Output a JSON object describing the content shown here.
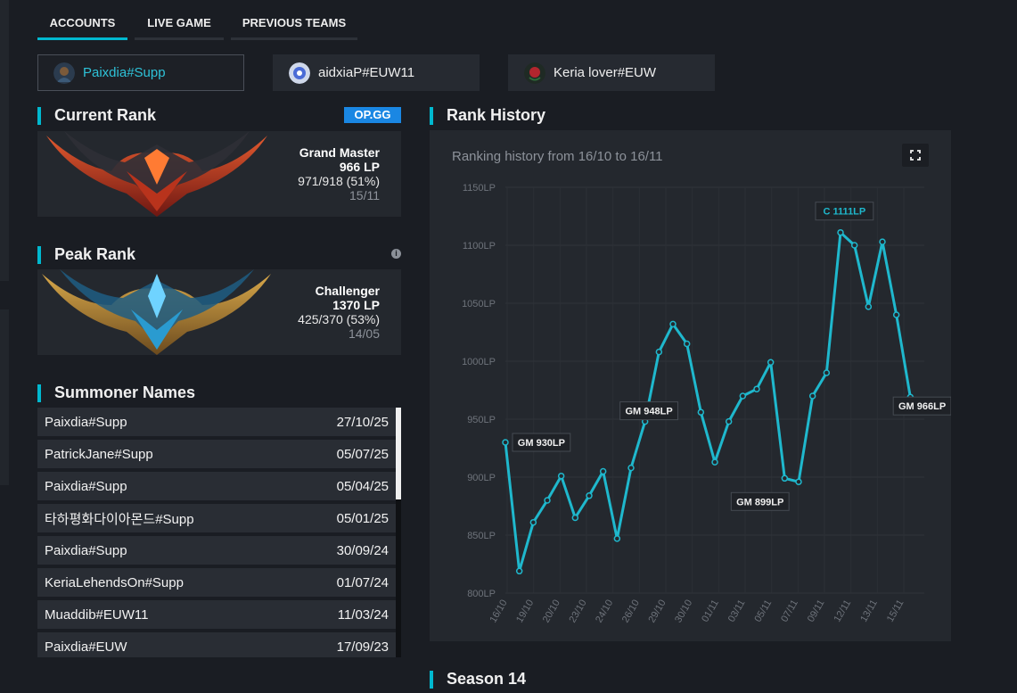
{
  "tabs": [
    {
      "label": "ACCOUNTS",
      "active": true
    },
    {
      "label": "LIVE GAME",
      "active": false
    },
    {
      "label": "PREVIOUS TEAMS",
      "active": false
    }
  ],
  "accounts": [
    {
      "name": "Paixdia#Supp",
      "active": true
    },
    {
      "name": "aidxiaP#EUW11",
      "active": false
    },
    {
      "name": "Keria lover#EUW",
      "active": false
    }
  ],
  "current_rank": {
    "title": "Current Rank",
    "badge": "OP.GG",
    "tier": "Grand Master",
    "lp": "966 LP",
    "record": "971/918 (51%)",
    "date": "15/11"
  },
  "peak_rank": {
    "title": "Peak Rank",
    "info_icon": "i",
    "tier": "Challenger",
    "lp": "1370 LP",
    "record": "425/370 (53%)",
    "date": "14/05"
  },
  "summoner_names": {
    "title": "Summoner Names",
    "rows": [
      {
        "name": "Paixdia#Supp",
        "date": "27/10/25"
      },
      {
        "name": "PatrickJane#Supp",
        "date": "05/07/25"
      },
      {
        "name": "Paixdia#Supp",
        "date": "05/04/25"
      },
      {
        "name": "타하평화다이아몬드#Supp",
        "date": "05/01/25"
      },
      {
        "name": "Paixdia#Supp",
        "date": "30/09/24"
      },
      {
        "name": "KeriaLehendsOn#Supp",
        "date": "01/07/24"
      },
      {
        "name": "Muaddib#EUW11",
        "date": "11/03/24"
      },
      {
        "name": "Paixdia#EUW",
        "date": "17/09/23"
      }
    ]
  },
  "rank_history": {
    "title": "Rank History",
    "subtitle": "Ranking history from 16/10 to 16/11"
  },
  "season": {
    "title": "Season 14"
  },
  "colors": {
    "accent": "#00b8cf",
    "line": "#1fb8cd",
    "opgg": "#1a87e3"
  },
  "icons": {
    "expand": "expand-icon",
    "info": "info-icon"
  },
  "chart_data": {
    "type": "line",
    "title": "",
    "xlabel": "",
    "ylabel": "",
    "ylim": [
      800,
      1150
    ],
    "y_ticks": [
      "800LP",
      "850LP",
      "900LP",
      "950LP",
      "1000LP",
      "1050LP",
      "1100LP",
      "1150LP"
    ],
    "x_ticks": [
      "16/10",
      "19/10",
      "20/10",
      "23/10",
      "24/10",
      "26/10",
      "29/10",
      "30/10",
      "01/11",
      "03/11",
      "05/11",
      "07/11",
      "09/11",
      "12/11",
      "13/11",
      "15/11"
    ],
    "grid": true,
    "series": [
      {
        "values": [
          930,
          819,
          861,
          880,
          901,
          865,
          884,
          905,
          847,
          908,
          948,
          1008,
          1032,
          1015,
          956,
          913,
          948,
          970,
          976,
          999,
          899,
          896,
          970,
          990,
          1111,
          1100,
          1047,
          1103,
          1040,
          969,
          966
        ]
      }
    ],
    "annotations": [
      {
        "label": "GM 930LP",
        "index": 0
      },
      {
        "label": "GM 948LP",
        "index": 10
      },
      {
        "label": "GM 899LP",
        "index": 20
      },
      {
        "label": "C 1111LP",
        "index": 24
      },
      {
        "label": "GM 966LP",
        "index": 30
      }
    ]
  }
}
